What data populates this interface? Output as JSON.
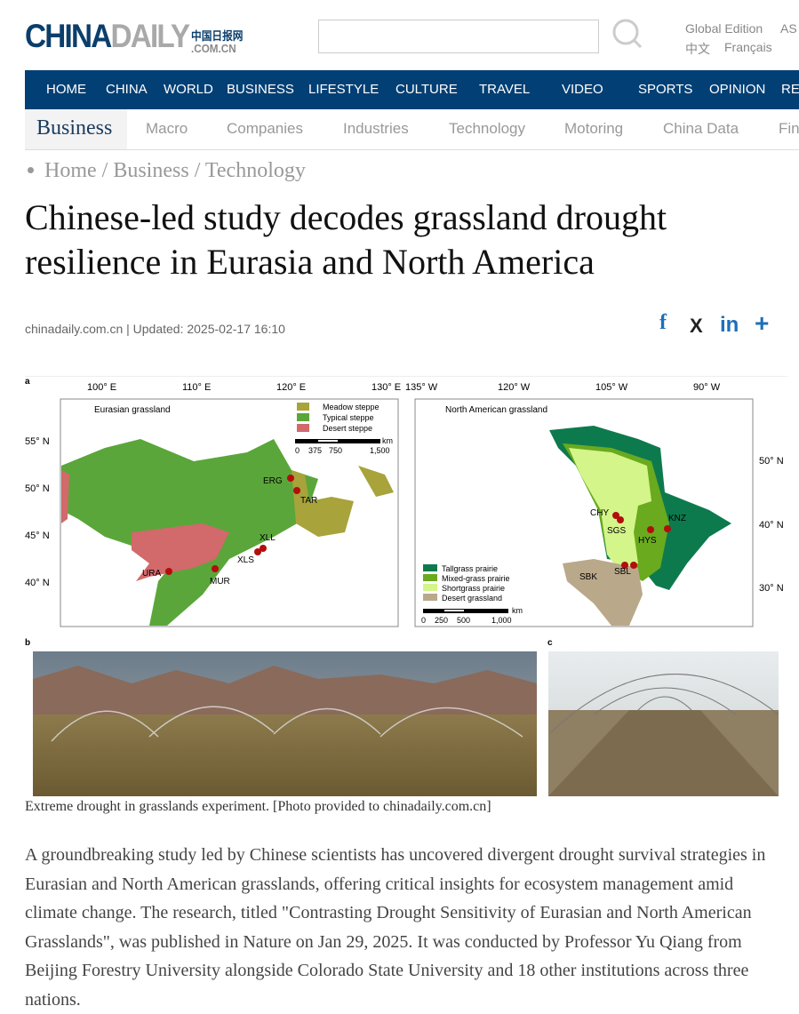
{
  "header": {
    "logo_main": "CHINA",
    "logo_daily": "DAILY",
    "logo_cn": "中国日报网",
    "logo_domain": ".COM.CN",
    "search_placeholder": "",
    "links": [
      "Global Edition",
      "AS",
      "中文",
      "Français"
    ]
  },
  "nav": {
    "items": [
      "HOME",
      "CHINA",
      "WORLD",
      "BUSINESS",
      "LIFESTYLE",
      "CULTURE",
      "TRAVEL",
      "VIDEO",
      "SPORTS",
      "OPINION",
      "RE"
    ]
  },
  "subnav": {
    "active": "Business",
    "items": [
      "Macro",
      "Companies",
      "Industries",
      "Technology",
      "Motoring",
      "China Data",
      "Fin"
    ]
  },
  "breadcrumb": [
    "Home",
    "Business",
    "Technology"
  ],
  "article": {
    "title": "Chinese-led study decodes grassland drought resilience in Eurasia and North America",
    "meta": "chinadaily.com.cn | Updated: 2025-02-17 16:10",
    "share": [
      "f",
      "X",
      "in",
      "+"
    ],
    "caption": "Extreme drought in grasslands experiment. [Photo provided to chinadaily.com.cn]",
    "body": "A groundbreaking study led by Chinese scientists has uncovered divergent drought survival strategies in Eurasian and North American grasslands, offering critical insights for ecosystem management amid climate change. The research, titled \"Contrasting Drought Sensitivity of Eurasian and North American Grasslands\", was published in Nature on Jan 29, 2025. It was conducted by Professor Yu Qiang from Beijing Forestry University alongside Colorado State University and 18 other institutions across three nations."
  },
  "figure": {
    "panel_labels": [
      "a",
      "b",
      "c"
    ],
    "eurasia": {
      "title": "Eurasian grassland",
      "lon_ticks": [
        "100° E",
        "110° E",
        "120° E",
        "130° E"
      ],
      "lat_ticks": [
        "55° N",
        "50° N",
        "45° N",
        "40° N"
      ],
      "legend": [
        {
          "label": "Meadow steppe",
          "color": "#a8a33a"
        },
        {
          "label": "Typical steppe",
          "color": "#5aa63a"
        },
        {
          "label": "Desert steppe",
          "color": "#d2696b"
        }
      ],
      "scale": [
        "0",
        "375",
        "750",
        "1,500"
      ],
      "scale_unit": "km",
      "sites": [
        "ERG",
        "TAR",
        "XLL",
        "XLS",
        "URA",
        "MUR"
      ]
    },
    "namerica": {
      "title": "North American grassland",
      "lon_ticks": [
        "135° W",
        "120° W",
        "105° W",
        "90° W"
      ],
      "lat_ticks": [
        "50° N",
        "40° N",
        "30° N"
      ],
      "legend": [
        {
          "label": "Tallgrass prairie",
          "color": "#0d7a4e"
        },
        {
          "label": "Mixed-grass prairie",
          "color": "#6aaa1e"
        },
        {
          "label": "Shortgrass prairie",
          "color": "#d4f58a"
        },
        {
          "label": "Desert grassland",
          "color": "#b9a88a"
        }
      ],
      "scale": [
        "0",
        "250",
        "500",
        "1,000"
      ],
      "scale_unit": "km",
      "sites": [
        "CHY",
        "SGS",
        "HYS",
        "KNZ",
        "SBK",
        "SBL"
      ]
    }
  }
}
